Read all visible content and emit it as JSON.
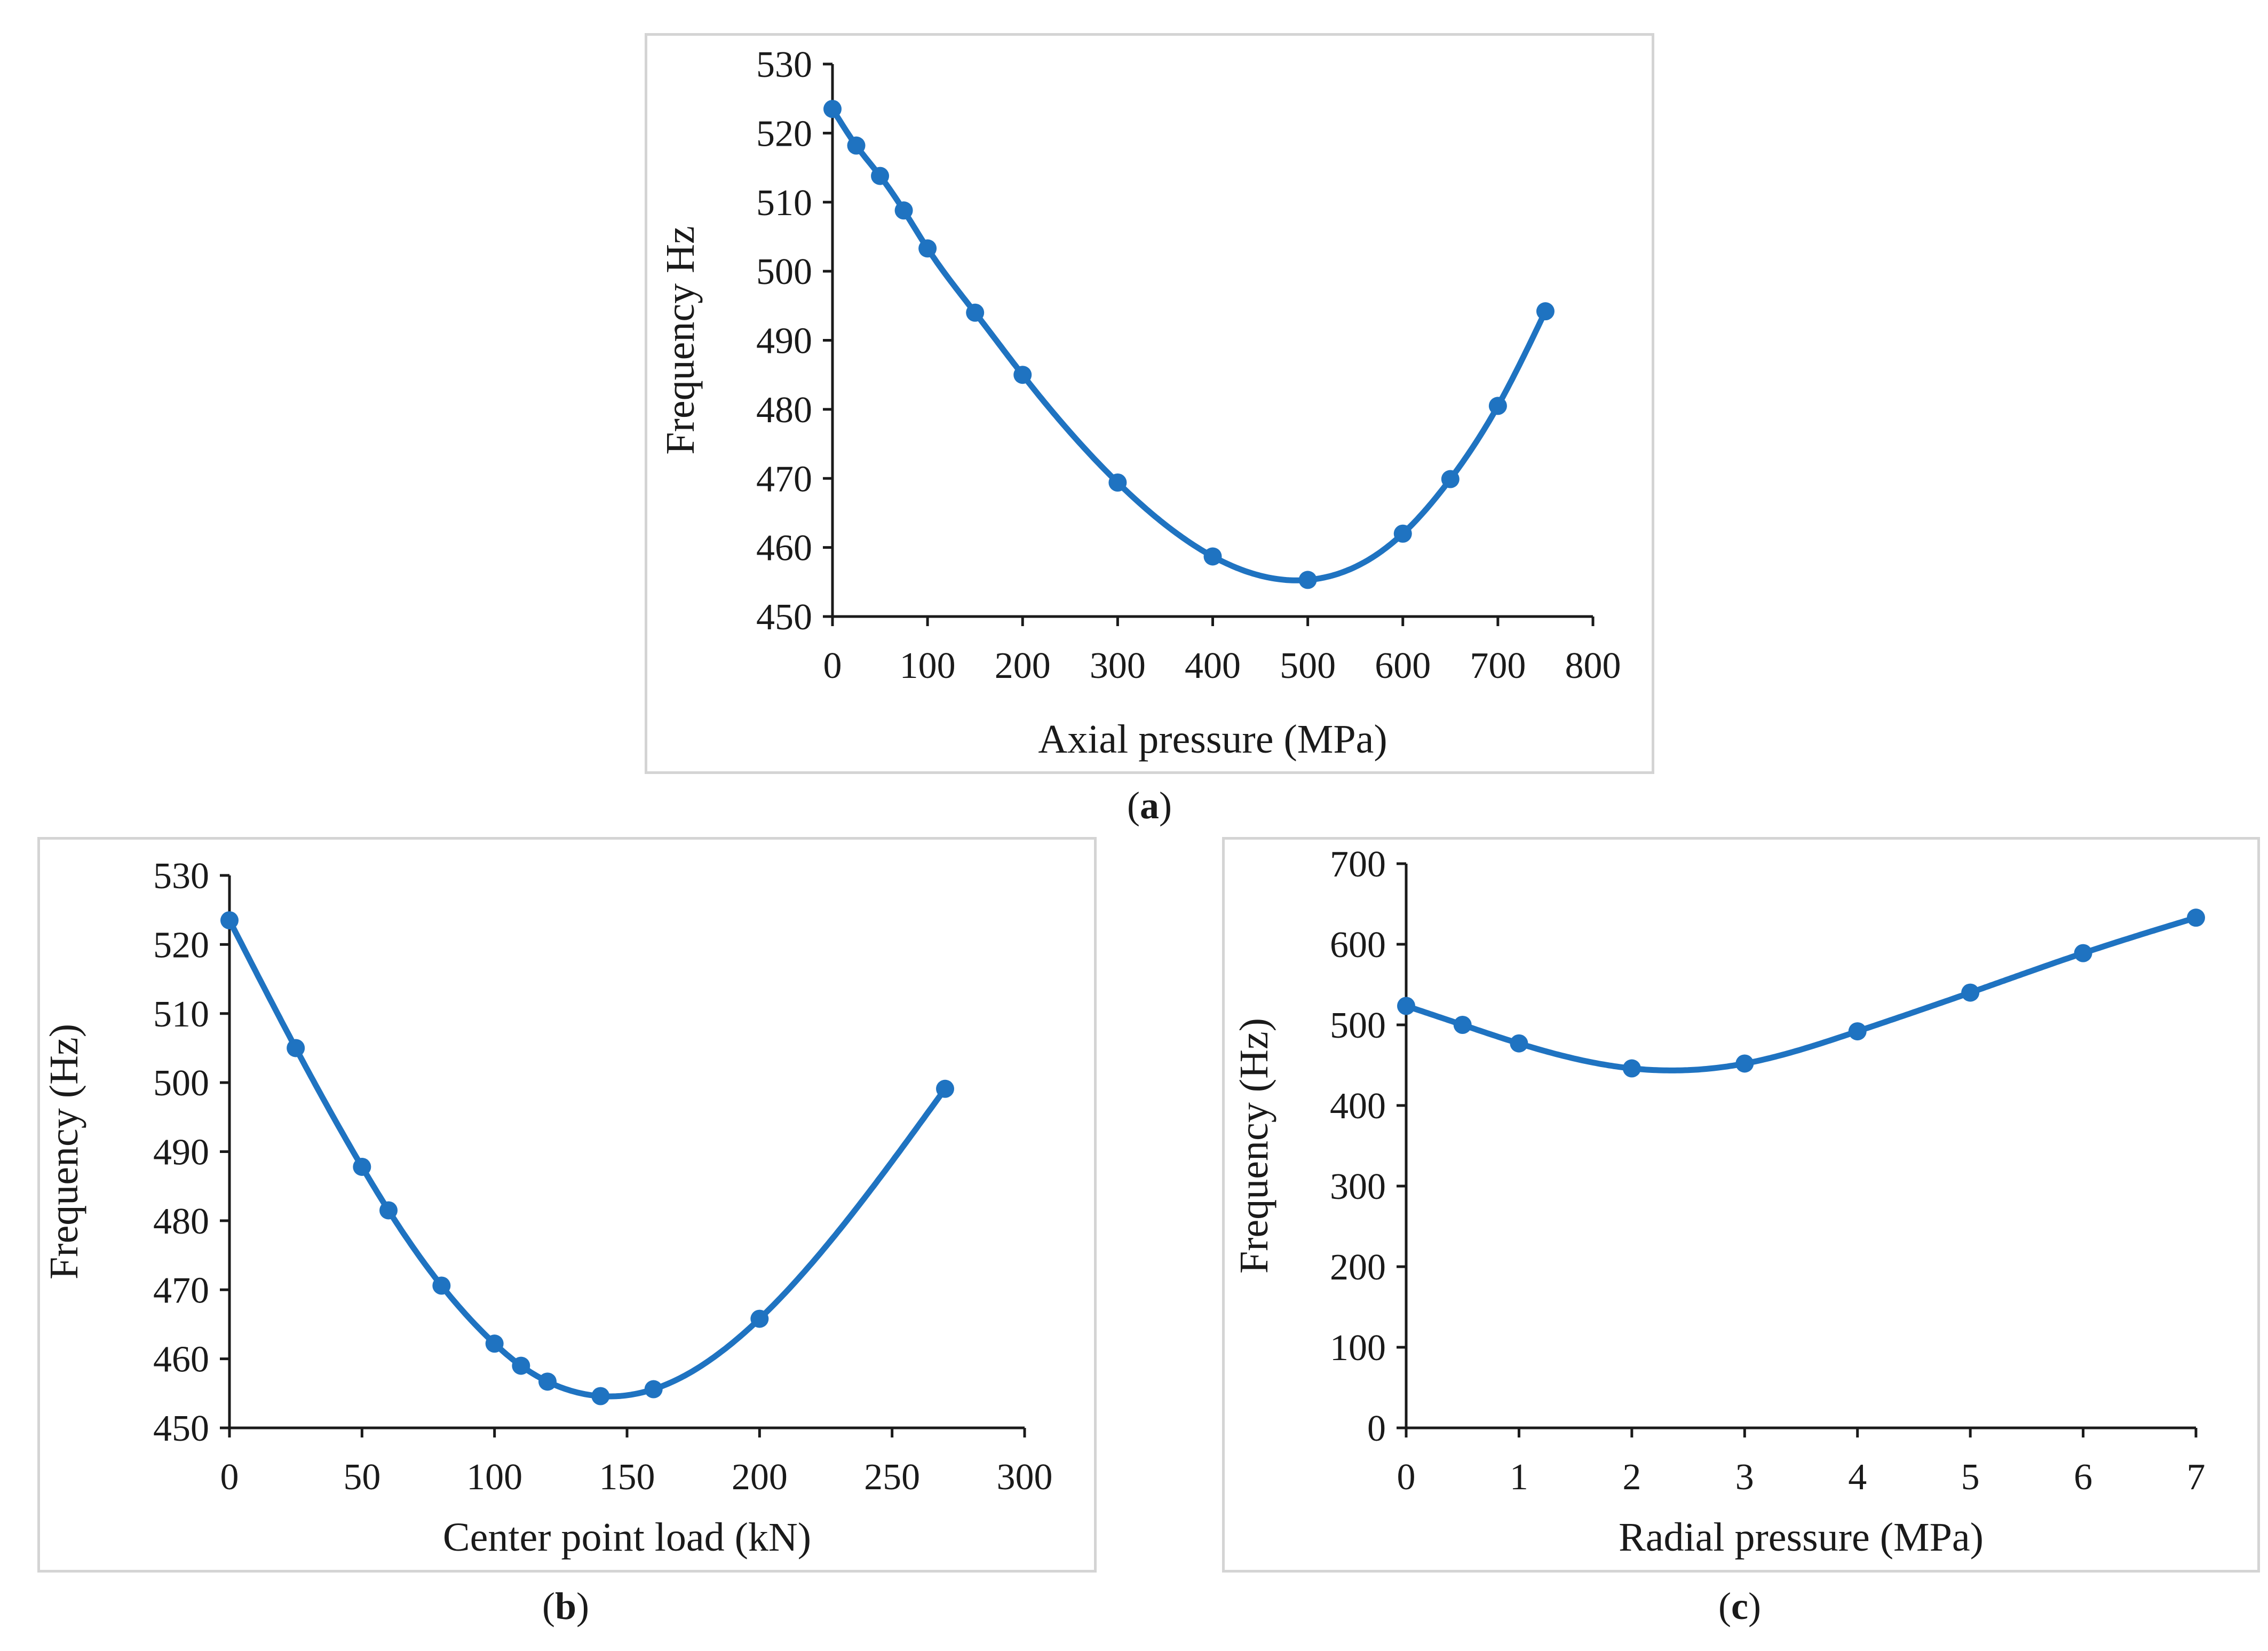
{
  "captions": {
    "a_open": "(",
    "a_letter": "a",
    "a_close": ")",
    "b_open": "(",
    "b_letter": "b",
    "b_close": ")",
    "c_open": "(",
    "c_letter": "c",
    "c_close": ")"
  },
  "colors": {
    "series": "#1f73c1",
    "axis": "#1a1a1a",
    "border": "#d4d4d4"
  },
  "chart_data": [
    {
      "id": "a",
      "type": "line",
      "xlabel": "Axial pressure (MPa)",
      "ylabel": "Frequency Hz",
      "xlim": [
        0,
        800
      ],
      "ylim": [
        450,
        530
      ],
      "xticks": [
        0,
        100,
        200,
        300,
        400,
        500,
        600,
        700,
        800
      ],
      "yticks": [
        450,
        460,
        470,
        480,
        490,
        500,
        510,
        520,
        530
      ],
      "series": [
        {
          "name": "Frequency",
          "x": [
            0,
            25,
            50,
            75,
            100,
            150,
            200,
            300,
            400,
            500,
            600,
            650,
            700,
            750
          ],
          "y": [
            523.5,
            518.2,
            513.8,
            508.8,
            503.3,
            494.0,
            485.0,
            469.4,
            458.7,
            455.3,
            462.0,
            469.9,
            480.5,
            494.2
          ]
        }
      ]
    },
    {
      "id": "b",
      "type": "line",
      "xlabel": "Center point load (kN)",
      "ylabel": "Frequency (Hz)",
      "xlim": [
        0,
        300
      ],
      "ylim": [
        450,
        530
      ],
      "xticks": [
        0,
        50,
        100,
        150,
        200,
        250,
        300
      ],
      "yticks": [
        450,
        460,
        470,
        480,
        490,
        500,
        510,
        520,
        530
      ],
      "series": [
        {
          "name": "Frequency",
          "x": [
            0,
            25,
            50,
            60,
            80,
            100,
            110,
            120,
            140,
            160,
            200,
            270
          ],
          "y": [
            523.5,
            505.0,
            487.8,
            481.5,
            470.6,
            462.2,
            459.0,
            456.7,
            454.6,
            455.6,
            465.8,
            499.1
          ]
        }
      ]
    },
    {
      "id": "c",
      "type": "line",
      "xlabel": "Radial pressure (MPa)",
      "ylabel": "Frequency (Hz)",
      "xlim": [
        0,
        7
      ],
      "ylim": [
        0,
        700
      ],
      "xticks": [
        0,
        1,
        2,
        3,
        4,
        5,
        6,
        7
      ],
      "yticks": [
        0,
        100,
        200,
        300,
        400,
        500,
        600,
        700
      ],
      "series": [
        {
          "name": "Frequency",
          "x": [
            0,
            0.5,
            1,
            2,
            3,
            4,
            5,
            6,
            7
          ],
          "y": [
            523.5,
            500,
            477,
            446,
            452,
            492,
            540,
            589,
            633
          ]
        }
      ]
    }
  ]
}
